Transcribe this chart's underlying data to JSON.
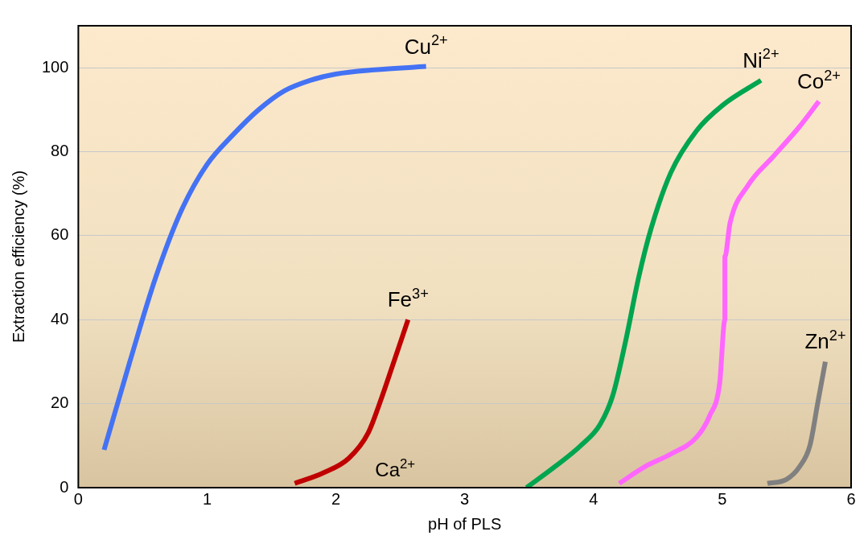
{
  "chart_data": {
    "type": "line",
    "xlabel": "pH of PLS",
    "ylabel": "Extraction efficiency (%)",
    "xlim": [
      0,
      6
    ],
    "xticks": [
      0,
      1,
      2,
      3,
      4,
      5,
      6
    ],
    "ylim": [
      0,
      110
    ],
    "yticks": [
      0,
      20,
      40,
      60,
      80,
      100
    ],
    "grid": "y",
    "legend": false,
    "marker": "none",
    "line_style": "solid",
    "series": [
      {
        "name": "Cu$^{2+}$",
        "color": "#4472f4",
        "x": [
          0.2,
          0.4,
          0.6,
          0.8,
          1.0,
          1.2,
          1.4,
          1.6,
          1.8,
          2.0,
          2.3,
          2.7
        ],
        "values": [
          9,
          30,
          50,
          66,
          77,
          84,
          90,
          94.5,
          97,
          98.5,
          99.5,
          100.3
        ]
      },
      {
        "name": "Fe$^{3+}$",
        "color": "#c00000",
        "x": [
          1.68,
          1.9,
          2.1,
          2.25,
          2.35,
          2.45,
          2.56
        ],
        "values": [
          1,
          3.5,
          7,
          13,
          21,
          30,
          40
        ]
      },
      {
        "name": "Ni$^{2+}$",
        "color": "#00a550",
        "x": [
          3.48,
          3.7,
          3.9,
          4.05,
          4.15,
          4.25,
          4.35,
          4.45,
          4.6,
          4.8,
          5.0,
          5.3
        ],
        "values": [
          0,
          5,
          10,
          15,
          22,
          35,
          50,
          62,
          75,
          85,
          91,
          97
        ]
      },
      {
        "name": "Co$^{2+}$",
        "color": "#ff66ff",
        "x": [
          4.2,
          4.4,
          4.6,
          4.8,
          4.9,
          4.98,
          5.02,
          5.02,
          5.06,
          5.2,
          5.4,
          5.6,
          5.75
        ],
        "values": [
          1,
          5,
          8,
          12,
          17,
          25,
          40,
          55,
          63,
          72,
          79,
          86,
          92
        ]
      },
      {
        "name": "Zn$^{2+}$",
        "color": "#808080",
        "x": [
          5.35,
          5.5,
          5.6,
          5.68,
          5.74,
          5.8
        ],
        "values": [
          1,
          2,
          5,
          10,
          20,
          30
        ]
      }
    ],
    "annotations": [
      "Ca$^{2+}$"
    ]
  }
}
